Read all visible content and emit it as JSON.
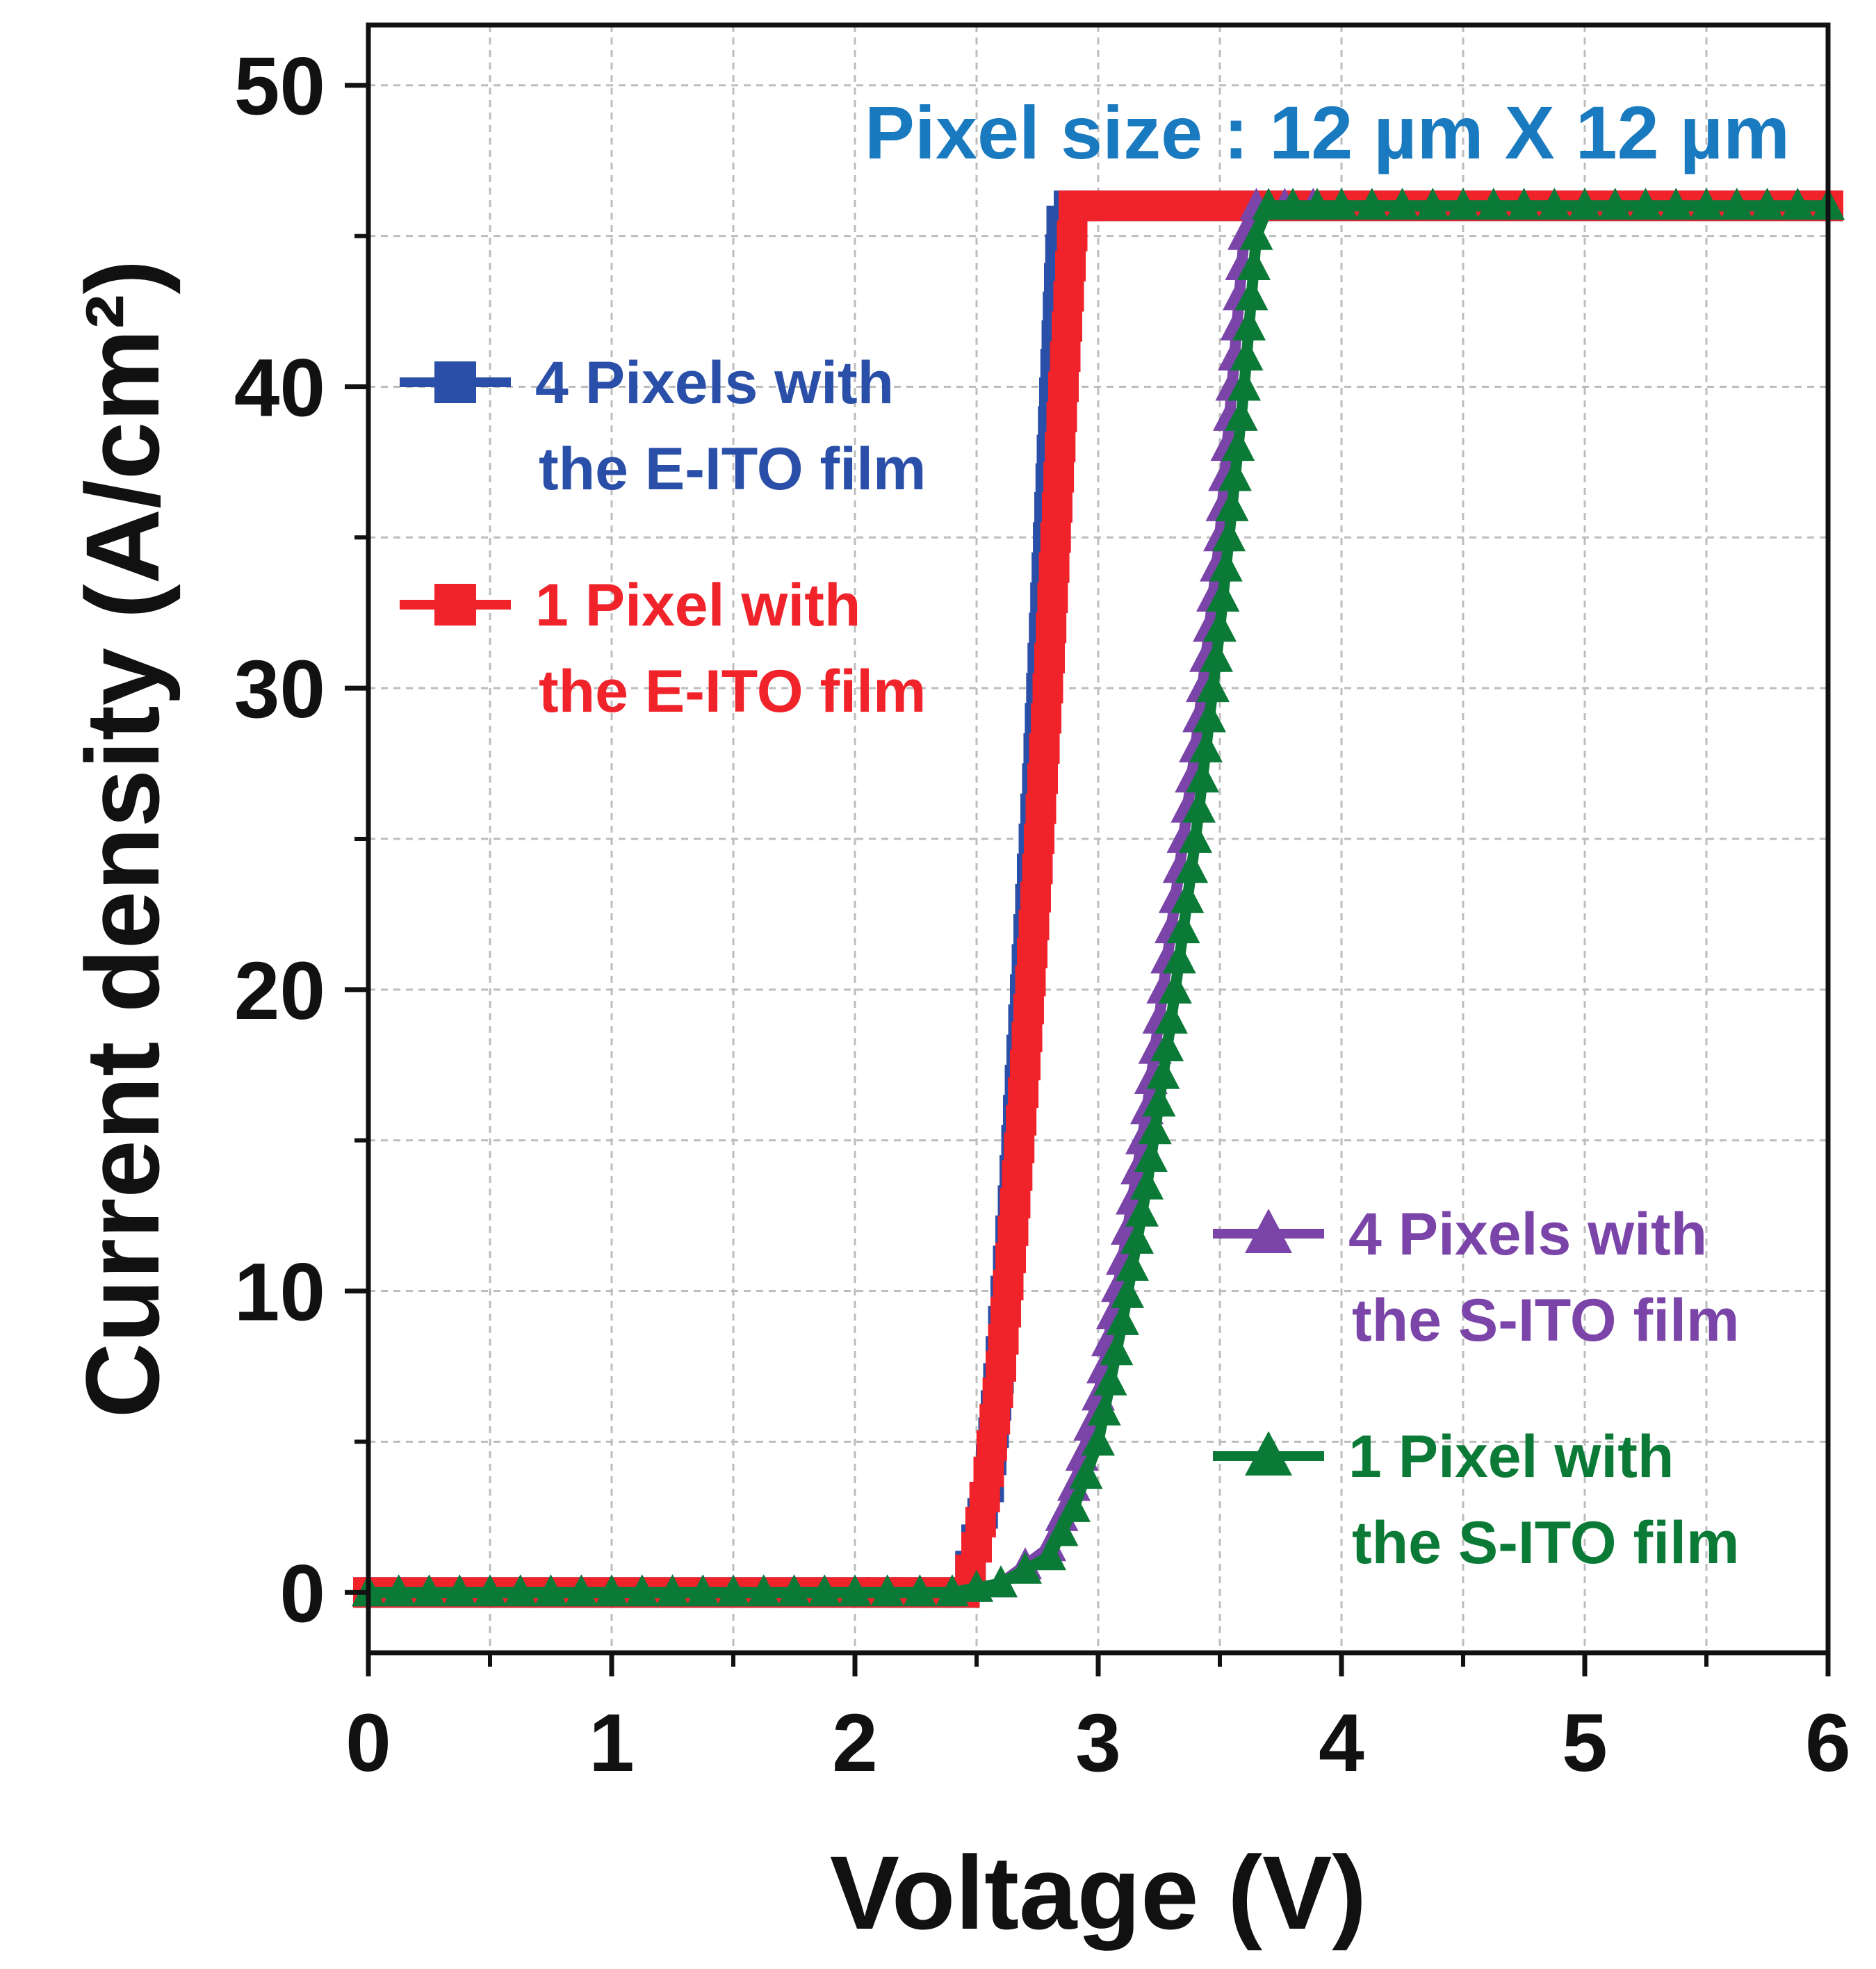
{
  "chart_data": {
    "type": "line",
    "title": "",
    "annotation": "Pixel size : 12 µm X 12 µm",
    "xlabel": "Voltage (V)",
    "ylabel": "Current density (A/cm²)",
    "xlim": [
      0,
      6
    ],
    "ylim": [
      -2,
      52
    ],
    "xticks": [
      "0",
      "1",
      "2",
      "3",
      "4",
      "5",
      "6"
    ],
    "yticks": [
      "0",
      "10",
      "20",
      "30",
      "40",
      "50"
    ],
    "grid": true,
    "legend_position": "left-and-right-inside",
    "colors": {
      "blue": "#2a4fa8",
      "red": "#f0222a",
      "purple": "#7a44a8",
      "green": "#0b7a36",
      "annotation": "#1a7abf"
    },
    "series": [
      {
        "name": "4 Pixels with the E-ITO film",
        "legend_lines": [
          "4 Pixels with",
          "the E-ITO film"
        ],
        "color": "#2a4fa8",
        "marker": "square",
        "x": [
          0,
          0.5,
          1,
          1.5,
          2,
          2.45,
          2.55,
          2.6,
          2.65,
          2.7,
          2.75,
          2.8,
          2.85,
          2.88,
          2.9,
          3,
          4,
          5,
          6
        ],
        "y": [
          0,
          0,
          0,
          0,
          0,
          0,
          3.5,
          8,
          13,
          20,
          27,
          36,
          45.5,
          46,
          46,
          46,
          46,
          46,
          46
        ]
      },
      {
        "name": "1 Pixel with the E-ITO film",
        "legend_lines": [
          "1 Pixel with",
          "the E-ITO film"
        ],
        "color": "#f0222a",
        "marker": "square",
        "x": [
          0,
          0.5,
          1,
          1.5,
          2,
          2.45,
          2.5,
          2.55,
          2.6,
          2.65,
          2.7,
          2.75,
          2.8,
          2.85,
          2.9,
          2.95,
          3,
          4,
          5,
          6
        ],
        "y": [
          0,
          0,
          0,
          0,
          0,
          0,
          1.5,
          4,
          7.5,
          12,
          17.5,
          24,
          31,
          39,
          46,
          46,
          46,
          46,
          46,
          46
        ]
      },
      {
        "name": "4 Pixels with the S-ITO film",
        "legend_lines": [
          "4 Pixels with",
          "the S-ITO film"
        ],
        "color": "#7a44a8",
        "marker": "triangle",
        "x": [
          0,
          0.5,
          1,
          1.5,
          2,
          2.4,
          2.6,
          2.8,
          2.9,
          3,
          3.1,
          3.2,
          3.3,
          3.4,
          3.5,
          3.55,
          3.6,
          3.65,
          4,
          5,
          6
        ],
        "y": [
          0,
          0,
          0,
          0,
          0,
          0,
          0.3,
          1.5,
          3.5,
          6.5,
          11,
          16,
          22,
          28,
          35,
          40,
          45,
          46,
          46,
          46,
          46
        ]
      },
      {
        "name": "1 Pixel with the S-ITO film",
        "legend_lines": [
          "1 Pixel with",
          "the S-ITO film"
        ],
        "color": "#0b7a36",
        "marker": "triangle",
        "x": [
          0,
          0.5,
          1,
          1.5,
          2,
          2.4,
          2.6,
          2.8,
          2.9,
          3,
          3.1,
          3.2,
          3.3,
          3.4,
          3.5,
          3.6,
          3.65,
          3.7,
          4,
          5,
          6
        ],
        "y": [
          0,
          0,
          0,
          0,
          0,
          0,
          0.3,
          1.2,
          2.8,
          5,
          9,
          13.5,
          19,
          25,
          32,
          40,
          45,
          46,
          46,
          46,
          46
        ]
      }
    ]
  }
}
